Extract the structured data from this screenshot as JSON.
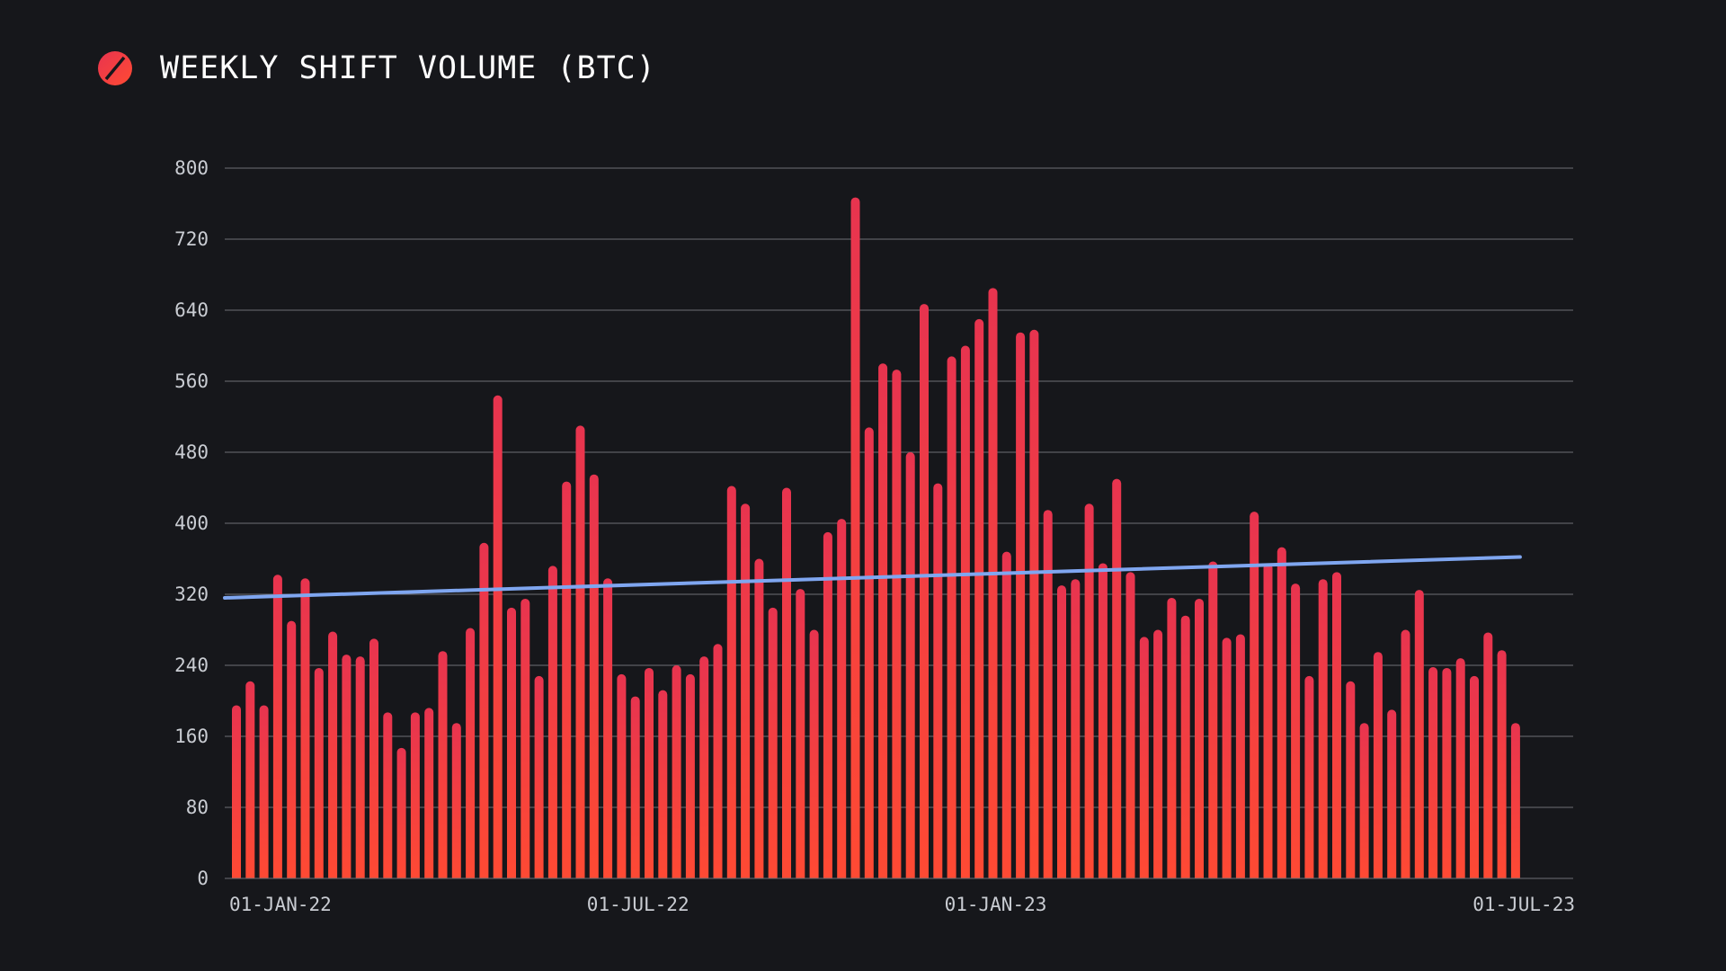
{
  "header": {
    "title": "WEEKLY SHIFT VOLUME (BTC)",
    "logo_icon": "sideshift-logo-icon"
  },
  "colors": {
    "background": "#16171b",
    "bar_top": "#e8344f",
    "bar_bottom": "#ff4a33",
    "trend_line": "#7fa6f0",
    "grid": "#6d6f75",
    "text": "#ffffff"
  },
  "chart_data": {
    "type": "bar",
    "title": "WEEKLY SHIFT VOLUME (BTC)",
    "xlabel": "",
    "ylabel": "",
    "ylim": [
      0,
      800
    ],
    "yticks": [
      0,
      80,
      160,
      240,
      320,
      400,
      480,
      560,
      640,
      720,
      800
    ],
    "grid": true,
    "x_tick_labels": [
      "01-JAN-22",
      "01-JUL-22",
      "01-JAN-23",
      "01-JUL-23"
    ],
    "x_tick_positions": [
      0,
      26,
      52,
      78
    ],
    "values": [
      195,
      222,
      195,
      342,
      290,
      338,
      237,
      278,
      252,
      250,
      270,
      187,
      147,
      187,
      192,
      256,
      175,
      282,
      378,
      544,
      305,
      315,
      228,
      352,
      447,
      510,
      455,
      338,
      230,
      205,
      237,
      212,
      240,
      230,
      250,
      264,
      442,
      422,
      360,
      305,
      440,
      326,
      280,
      390,
      405,
      767,
      508,
      580,
      573,
      480,
      647,
      445,
      588,
      600,
      630,
      665,
      368,
      615,
      618,
      415,
      330,
      337,
      422,
      355,
      450,
      345,
      272,
      280,
      316,
      296,
      315,
      357,
      271,
      275,
      413,
      355,
      373,
      332,
      228,
      337,
      345,
      222,
      175,
      255,
      190,
      280,
      325,
      238,
      237,
      248,
      228,
      277,
      257,
      175
    ],
    "trend_line": {
      "name": "trend",
      "start": 316,
      "end": 362
    }
  }
}
